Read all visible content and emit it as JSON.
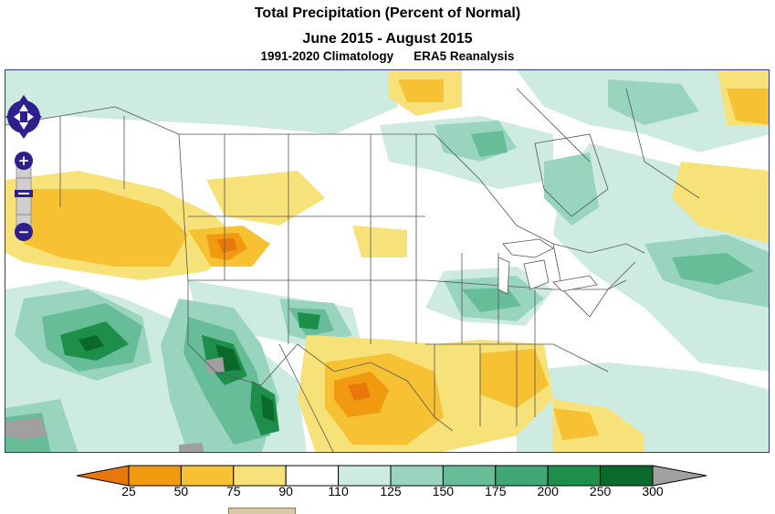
{
  "header": {
    "title": "Total Precipitation (Percent of Normal)",
    "period": "June 2015 - August 2015",
    "climatology": "1991-2020 Climatology",
    "dataset": "ERA5 Reanalysis"
  },
  "legend": {
    "ticks": [
      "25",
      "50",
      "75",
      "90",
      "110",
      "125",
      "150",
      "175",
      "200",
      "250",
      "300"
    ],
    "colors": {
      "below_25": "#e8780a",
      "25_50": "#f29a0f",
      "50_75": "#f6c233",
      "75_90": "#f7e27a",
      "90_110": "#ffffff",
      "110_125": "#cdebe0",
      "125_150": "#99d4be",
      "150_175": "#66bd98",
      "175_200": "#3fa874",
      "200_250": "#1d8f4b",
      "250_300": "#0a6a2c",
      "above_300": "#a0a0a0"
    }
  },
  "map_controls": {
    "pan": "pan-control-icon",
    "zoom_in": "+",
    "zoom_out": "−",
    "accent_color": "#2e1f8f"
  }
}
